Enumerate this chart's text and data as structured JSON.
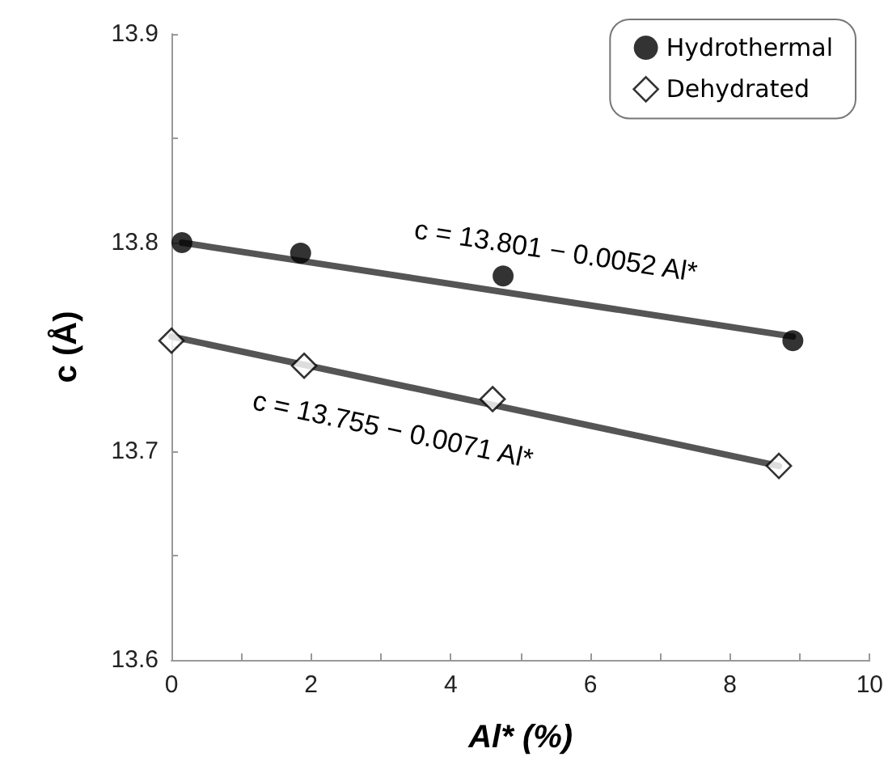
{
  "chart_data": {
    "type": "scatter",
    "xlabel": "Al* (%)",
    "ylabel": "c (Å)",
    "xlim": [
      0,
      10
    ],
    "xticks": [
      0,
      {
        "value": 1,
        "label": null
      },
      2,
      {
        "value": 3,
        "label": null
      },
      4,
      {
        "value": 5,
        "label": null
      },
      6,
      {
        "value": 7,
        "label": null
      },
      8,
      {
        "value": 9,
        "label": null
      },
      10
    ],
    "ylim": [
      13.6,
      13.9
    ],
    "yticks": [
      13.6,
      {
        "value": 13.65,
        "label": null
      },
      13.7,
      {
        "value": 13.75,
        "label": null
      },
      13.8,
      {
        "value": 13.85,
        "label": null
      },
      13.9
    ],
    "grid": false,
    "legend": "top right",
    "series": [
      {
        "name": "Hydrothermal",
        "marker": "circle",
        "color": "#000000",
        "x": [
          0.15,
          1.85,
          4.75,
          8.9
        ],
        "values": [
          13.8,
          13.795,
          13.784,
          13.753
        ]
      },
      {
        "name": "Dehydrated",
        "marker": "diamond",
        "color": "#000000",
        "x": [
          0.0,
          1.9,
          4.6,
          8.7
        ],
        "values": [
          13.753,
          13.741,
          13.725,
          13.693
        ]
      },
      {
        "type": "line",
        "marker": "none",
        "line_style": "solid",
        "color": "#555555",
        "x": [
          0.15,
          8.9
        ],
        "values": [
          13.8,
          13.755
        ]
      },
      {
        "type": "line",
        "marker": "none",
        "line_style": "solid",
        "color": "#555555",
        "x": [
          0.0,
          8.7
        ],
        "values": [
          13.755,
          13.693
        ]
      }
    ],
    "annotations": [
      "c = 13.801 − 0.0052 Al*",
      "c = 13.755 − 0.0071 Al*"
    ]
  }
}
